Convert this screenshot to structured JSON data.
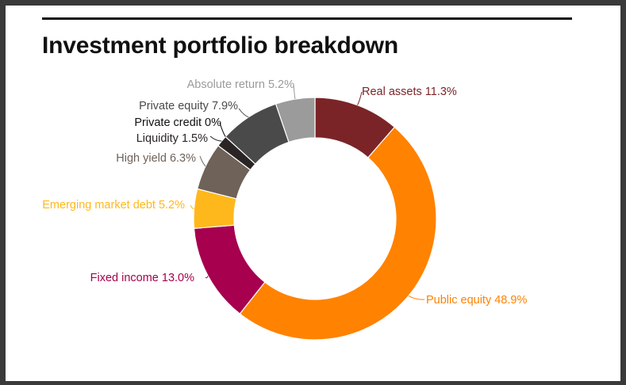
{
  "title": "Investment portfolio breakdown",
  "chart_data": {
    "type": "pie",
    "variant": "donut",
    "title": "Investment portfolio breakdown",
    "legend": "none",
    "slices": [
      {
        "name": "Real assets",
        "value": 11.3,
        "label": "Real assets 11.3%",
        "color": "#7b2428"
      },
      {
        "name": "Public equity",
        "value": 48.9,
        "label": "Public equity 48.9%",
        "color": "#ff8200"
      },
      {
        "name": "Fixed income",
        "value": 13.0,
        "label": "Fixed income 13.0%",
        "color": "#a6004e"
      },
      {
        "name": "Emerging market debt",
        "value": 5.2,
        "label": "Emerging market debt 5.2%",
        "color": "#ffb81c"
      },
      {
        "name": "High yield",
        "value": 6.3,
        "label": "High yield 6.3%",
        "color": "#6e6259"
      },
      {
        "name": "Liquidity",
        "value": 1.5,
        "label": "Liquidity 1.5%",
        "color": "#2b2424"
      },
      {
        "name": "Private credit",
        "value": 0.0,
        "label": "Private credit 0%",
        "color": "#000000"
      },
      {
        "name": "Private equity",
        "value": 7.9,
        "label": "Private equity 7.9%",
        "color": "#4a4a4a"
      },
      {
        "name": "Absolute return",
        "value": 5.2,
        "label": "Absolute return 5.2%",
        "color": "#9b9b9b"
      }
    ]
  }
}
